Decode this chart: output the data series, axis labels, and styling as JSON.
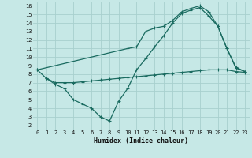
{
  "background_color": "#c6e8e6",
  "grid_color": "#a8d0ce",
  "line_color": "#1a6b60",
  "xlabel": "Humidex (Indice chaleur)",
  "xlim": [
    -0.5,
    23.5
  ],
  "ylim": [
    1.5,
    16.5
  ],
  "yticks": [
    2,
    3,
    4,
    5,
    6,
    7,
    8,
    9,
    10,
    11,
    12,
    13,
    14,
    15,
    16
  ],
  "xticks": [
    0,
    1,
    2,
    3,
    4,
    5,
    6,
    7,
    8,
    9,
    10,
    11,
    12,
    13,
    14,
    15,
    16,
    17,
    18,
    19,
    20,
    21,
    22,
    23
  ],
  "line1_x": [
    0,
    1,
    2,
    3,
    4,
    5,
    6,
    7,
    8,
    9,
    10,
    11,
    12,
    13,
    14,
    15,
    16,
    17,
    18,
    19,
    20,
    21,
    22,
    23
  ],
  "line1_y": [
    8.5,
    7.5,
    7.0,
    7.0,
    7.0,
    7.1,
    7.2,
    7.3,
    7.4,
    7.5,
    7.6,
    7.7,
    7.8,
    7.9,
    8.0,
    8.1,
    8.2,
    8.3,
    8.4,
    8.5,
    8.5,
    8.5,
    8.3,
    8.2
  ],
  "line2_x": [
    0,
    10,
    11,
    12,
    13,
    14,
    15,
    16,
    17,
    18,
    19,
    20,
    21,
    22,
    23
  ],
  "line2_y": [
    8.5,
    11.0,
    11.2,
    13.0,
    13.4,
    13.6,
    14.3,
    15.3,
    15.7,
    16.0,
    15.3,
    13.6,
    11.0,
    8.7,
    8.3
  ],
  "line3_x": [
    1,
    2,
    3,
    4,
    5,
    6,
    7,
    8,
    9,
    10,
    11,
    12,
    13,
    14,
    15,
    16,
    17,
    18,
    19,
    20,
    21,
    22,
    23
  ],
  "line3_y": [
    7.5,
    6.8,
    6.3,
    5.0,
    4.5,
    4.0,
    3.0,
    2.5,
    4.8,
    6.3,
    8.5,
    9.8,
    11.2,
    12.5,
    14.0,
    15.1,
    15.5,
    15.8,
    14.8,
    13.6,
    11.0,
    8.8,
    8.3
  ]
}
